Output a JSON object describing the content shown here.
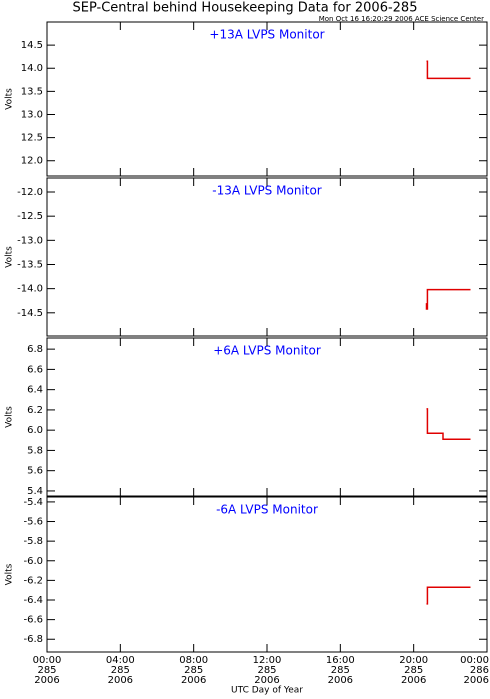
{
  "header": {
    "title": "SEP-Central behind Housekeeping Data for 2006-285",
    "subtitle": "Mon Oct 16 16:20:29 2006 ACE Science Center"
  },
  "chart_data": [
    {
      "type": "line",
      "title": "+13A LVPS Monitor",
      "ylabel": "Volts",
      "title_color": "#0000ff",
      "x": [
        20.7,
        20.75,
        20.75,
        23.1
      ],
      "xlim": [
        0,
        24
      ],
      "xticks": [
        0,
        4,
        8,
        12,
        16,
        20,
        24
      ],
      "series": [
        {
          "color": "#e00000",
          "values": [
            14.15,
            14.15,
            13.78,
            13.78
          ]
        }
      ],
      "ylim": [
        11.67,
        15.0
      ],
      "yticks": [
        {
          "value": 12,
          "label": "12.0"
        },
        12.5,
        {
          "value": 13,
          "label": "13.0"
        },
        13.5,
        {
          "value": 14,
          "label": "14.0"
        },
        14.5
      ]
    },
    {
      "type": "line",
      "title": "-13A LVPS Monitor",
      "ylabel": "Volts",
      "title_color": "#0000ff",
      "x": [
        20.7,
        20.7,
        20.75,
        20.75,
        23.1
      ],
      "xlim": [
        0,
        24
      ],
      "xticks": [
        0,
        4,
        8,
        12,
        16,
        20,
        24
      ],
      "series": [
        {
          "color": "#e00000",
          "values": [
            -14.3,
            -14.42,
            -14.42,
            -14.02,
            -14.02
          ]
        }
      ],
      "ylim": [
        -14.98,
        -11.71
      ],
      "yticks": [
        {
          "value": -12,
          "label": "-12.0"
        },
        -12.5,
        {
          "value": -13,
          "label": "-13.0"
        },
        -13.5,
        {
          "value": -14,
          "label": "-14.0"
        },
        -14.5
      ]
    },
    {
      "type": "line",
      "title": "+6A LVPS Monitor",
      "ylabel": "Volts",
      "title_color": "#0000ff",
      "x": [
        20.7,
        20.75,
        20.75,
        21.6,
        21.6,
        23.1
      ],
      "xlim": [
        0,
        24
      ],
      "xticks": [
        0,
        4,
        8,
        12,
        16,
        20,
        24
      ],
      "series": [
        {
          "color": "#e00000",
          "values": [
            6.21,
            6.21,
            5.97,
            5.97,
            5.91,
            5.91
          ]
        }
      ],
      "ylim": [
        5.35,
        6.91
      ],
      "yticks": [
        5.4,
        5.6,
        5.8,
        {
          "value": 6,
          "label": "6.0"
        },
        6.2,
        6.4,
        6.6,
        6.8
      ]
    },
    {
      "type": "line",
      "title": "-6A LVPS Monitor",
      "ylabel": "Volts",
      "title_color": "#0000ff",
      "xlabel": "UTC Day of Year",
      "x": [
        20.7,
        20.75,
        20.75,
        23.1
      ],
      "xlim": [
        0,
        24
      ],
      "xticks": [
        {
          "value": 0,
          "label": [
            "00:00",
            "285",
            "2006"
          ]
        },
        {
          "value": 4,
          "label": [
            "04:00",
            "285",
            "2006"
          ]
        },
        {
          "value": 8,
          "label": [
            "08:00",
            "285",
            "2006"
          ]
        },
        {
          "value": 12,
          "label": [
            "12:00",
            "285",
            "2006"
          ]
        },
        {
          "value": 16,
          "label": [
            "16:00",
            "285",
            "2006"
          ]
        },
        {
          "value": 20,
          "label": [
            "20:00",
            "285",
            "2006"
          ]
        },
        {
          "value": 24,
          "label": [
            "00:00",
            "286",
            "2006"
          ]
        }
      ],
      "series": [
        {
          "color": "#e00000",
          "values": [
            -6.44,
            -6.44,
            -6.27,
            -6.27
          ]
        }
      ],
      "ylim": [
        -6.93,
        -5.35
      ],
      "yticks": [
        -5.4,
        -5.6,
        -5.8,
        {
          "value": -6,
          "label": "-6.0"
        },
        -6.2,
        -6.4,
        -6.6,
        -6.8
      ]
    }
  ]
}
